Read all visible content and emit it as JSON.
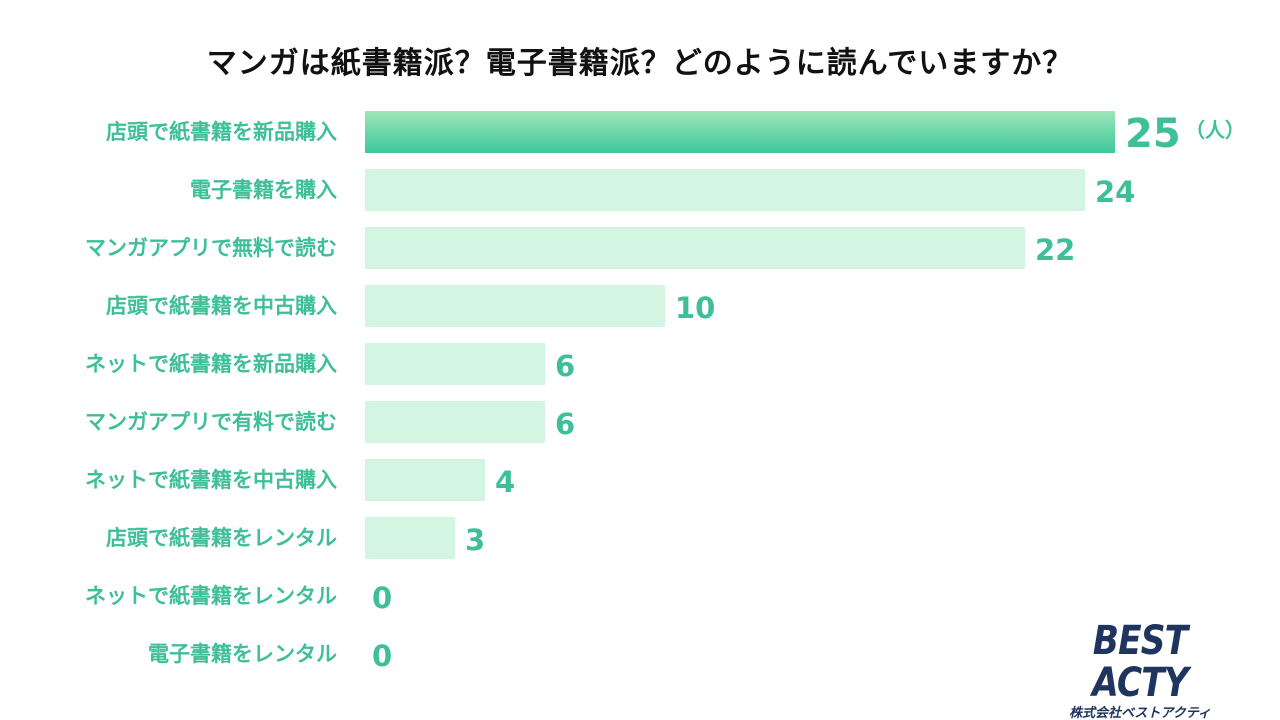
{
  "title": "マンガは紙書籍派？電子書籍派？どのように読んでいますか？",
  "unit": "（人）",
  "logo": {
    "name": "BEST ACTY",
    "subtitle": "株式会社ベストアクティ"
  },
  "colors": {
    "top_bar_gradient_start": "#9ee6b8",
    "top_bar_gradient_end": "#3cc79b",
    "bar": "#d5f5e3",
    "label": "#3fbf97",
    "logo": "#1f3560"
  },
  "chart_data": {
    "type": "bar",
    "orientation": "horizontal",
    "title": "マンガは紙書籍派？電子書籍派？どのように読んでいますか？",
    "xlabel": "",
    "ylabel": "",
    "unit": "（人）",
    "xlim": [
      0,
      25
    ],
    "grid": false,
    "categories": [
      "店頭で紙書籍を新品購入",
      "電子書籍を購入",
      "マンガアプリで無料で読む",
      "店頭で紙書籍を中古購入",
      "ネットで紙書籍を新品購入",
      "マンガアプリで有料で読む",
      "ネットで紙書籍を中古購入",
      "店頭で紙書籍をレンタル",
      "ネットで紙書籍をレンタル",
      "電子書籍をレンタル"
    ],
    "values": [
      25,
      24,
      22,
      10,
      6,
      6,
      4,
      3,
      0,
      0
    ]
  }
}
